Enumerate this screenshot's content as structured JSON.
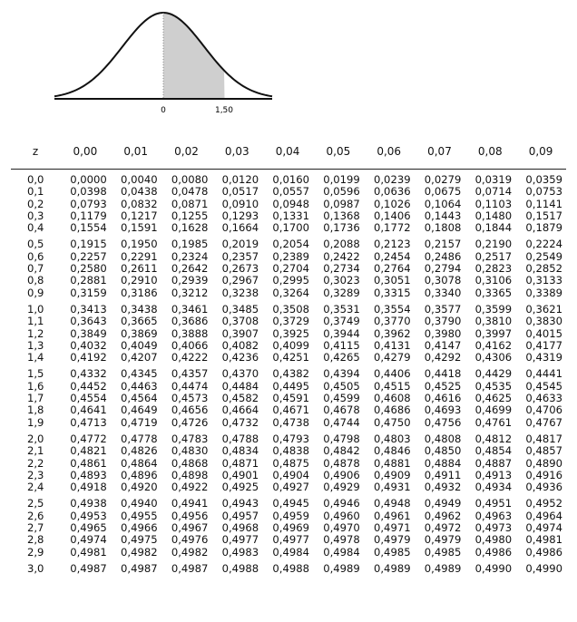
{
  "figure": {
    "tick_mean": "0",
    "tick_z": "1,50",
    "shade_to_z": 1.5
  },
  "table": {
    "headers": [
      "z",
      "0,00",
      "0,01",
      "0,02",
      "0,03",
      "0,04",
      "0,05",
      "0,06",
      "0,07",
      "0,08",
      "0,09"
    ],
    "rows": [
      [
        "0,0",
        "0,0000",
        "0,0040",
        "0,0080",
        "0,0120",
        "0,0160",
        "0,0199",
        "0,0239",
        "0,0279",
        "0,0319",
        "0,0359"
      ],
      [
        "0,1",
        "0,0398",
        "0,0438",
        "0,0478",
        "0,0517",
        "0,0557",
        "0,0596",
        "0,0636",
        "0,0675",
        "0,0714",
        "0,0753"
      ],
      [
        "0,2",
        "0,0793",
        "0,0832",
        "0,0871",
        "0,0910",
        "0,0948",
        "0,0987",
        "0,1026",
        "0,1064",
        "0,1103",
        "0,1141"
      ],
      [
        "0,3",
        "0,1179",
        "0,1217",
        "0,1255",
        "0,1293",
        "0,1331",
        "0,1368",
        "0,1406",
        "0,1443",
        "0,1480",
        "0,1517"
      ],
      [
        "0,4",
        "0,1554",
        "0,1591",
        "0,1628",
        "0,1664",
        "0,1700",
        "0,1736",
        "0,1772",
        "0,1808",
        "0,1844",
        "0,1879"
      ],
      [
        "0,5",
        "0,1915",
        "0,1950",
        "0,1985",
        "0,2019",
        "0,2054",
        "0,2088",
        "0,2123",
        "0,2157",
        "0,2190",
        "0,2224"
      ],
      [
        "0,6",
        "0,2257",
        "0,2291",
        "0,2324",
        "0,2357",
        "0,2389",
        "0,2422",
        "0,2454",
        "0,2486",
        "0,2517",
        "0,2549"
      ],
      [
        "0,7",
        "0,2580",
        "0,2611",
        "0,2642",
        "0,2673",
        "0,2704",
        "0,2734",
        "0,2764",
        "0,2794",
        "0,2823",
        "0,2852"
      ],
      [
        "0,8",
        "0,2881",
        "0,2910",
        "0,2939",
        "0,2967",
        "0,2995",
        "0,3023",
        "0,3051",
        "0,3078",
        "0,3106",
        "0,3133"
      ],
      [
        "0,9",
        "0,3159",
        "0,3186",
        "0,3212",
        "0,3238",
        "0,3264",
        "0,3289",
        "0,3315",
        "0,3340",
        "0,3365",
        "0,3389"
      ],
      [
        "1,0",
        "0,3413",
        "0,3438",
        "0,3461",
        "0,3485",
        "0,3508",
        "0,3531",
        "0,3554",
        "0,3577",
        "0,3599",
        "0,3621"
      ],
      [
        "1,1",
        "0,3643",
        "0,3665",
        "0,3686",
        "0,3708",
        "0,3729",
        "0,3749",
        "0,3770",
        "0,3790",
        "0,3810",
        "0,3830"
      ],
      [
        "1,2",
        "0,3849",
        "0,3869",
        "0,3888",
        "0,3907",
        "0,3925",
        "0,3944",
        "0,3962",
        "0,3980",
        "0,3997",
        "0,4015"
      ],
      [
        "1,3",
        "0,4032",
        "0,4049",
        "0,4066",
        "0,4082",
        "0,4099",
        "0,4115",
        "0,4131",
        "0,4147",
        "0,4162",
        "0,4177"
      ],
      [
        "1,4",
        "0,4192",
        "0,4207",
        "0,4222",
        "0,4236",
        "0,4251",
        "0,4265",
        "0,4279",
        "0,4292",
        "0,4306",
        "0,4319"
      ],
      [
        "1,5",
        "0,4332",
        "0,4345",
        "0,4357",
        "0,4370",
        "0,4382",
        "0,4394",
        "0,4406",
        "0,4418",
        "0,4429",
        "0,4441"
      ],
      [
        "1,6",
        "0,4452",
        "0,4463",
        "0,4474",
        "0,4484",
        "0,4495",
        "0,4505",
        "0,4515",
        "0,4525",
        "0,4535",
        "0,4545"
      ],
      [
        "1,7",
        "0,4554",
        "0,4564",
        "0,4573",
        "0,4582",
        "0,4591",
        "0,4599",
        "0,4608",
        "0,4616",
        "0,4625",
        "0,4633"
      ],
      [
        "1,8",
        "0,4641",
        "0,4649",
        "0,4656",
        "0,4664",
        "0,4671",
        "0,4678",
        "0,4686",
        "0,4693",
        "0,4699",
        "0,4706"
      ],
      [
        "1,9",
        "0,4713",
        "0,4719",
        "0,4726",
        "0,4732",
        "0,4738",
        "0,4744",
        "0,4750",
        "0,4756",
        "0,4761",
        "0,4767"
      ],
      [
        "2,0",
        "0,4772",
        "0,4778",
        "0,4783",
        "0,4788",
        "0,4793",
        "0,4798",
        "0,4803",
        "0,4808",
        "0,4812",
        "0,4817"
      ],
      [
        "2,1",
        "0,4821",
        "0,4826",
        "0,4830",
        "0,4834",
        "0,4838",
        "0,4842",
        "0,4846",
        "0,4850",
        "0,4854",
        "0,4857"
      ],
      [
        "2,2",
        "0,4861",
        "0,4864",
        "0,4868",
        "0,4871",
        "0,4875",
        "0,4878",
        "0,4881",
        "0,4884",
        "0,4887",
        "0,4890"
      ],
      [
        "2,3",
        "0,4893",
        "0,4896",
        "0,4898",
        "0,4901",
        "0,4904",
        "0,4906",
        "0,4909",
        "0,4911",
        "0,4913",
        "0,4916"
      ],
      [
        "2,4",
        "0,4918",
        "0,4920",
        "0,4922",
        "0,4925",
        "0,4927",
        "0,4929",
        "0,4931",
        "0,4932",
        "0,4934",
        "0,4936"
      ],
      [
        "2,5",
        "0,4938",
        "0,4940",
        "0,4941",
        "0,4943",
        "0,4945",
        "0,4946",
        "0,4948",
        "0,4949",
        "0,4951",
        "0,4952"
      ],
      [
        "2,6",
        "0,4953",
        "0,4955",
        "0,4956",
        "0,4957",
        "0,4959",
        "0,4960",
        "0,4961",
        "0,4962",
        "0,4963",
        "0,4964"
      ],
      [
        "2,7",
        "0,4965",
        "0,4966",
        "0,4967",
        "0,4968",
        "0,4969",
        "0,4970",
        "0,4971",
        "0,4972",
        "0,4973",
        "0,4974"
      ],
      [
        "2,8",
        "0,4974",
        "0,4975",
        "0,4976",
        "0,4977",
        "0,4977",
        "0,4978",
        "0,4979",
        "0,4979",
        "0,4980",
        "0,4981"
      ],
      [
        "2,9",
        "0,4981",
        "0,4982",
        "0,4982",
        "0,4983",
        "0,4984",
        "0,4984",
        "0,4985",
        "0,4985",
        "0,4986",
        "0,4986"
      ],
      [
        "3,0",
        "0,4987",
        "0,4987",
        "0,4987",
        "0,4988",
        "0,4988",
        "0,4989",
        "0,4989",
        "0,4989",
        "0,4990",
        "0,4990"
      ]
    ]
  }
}
